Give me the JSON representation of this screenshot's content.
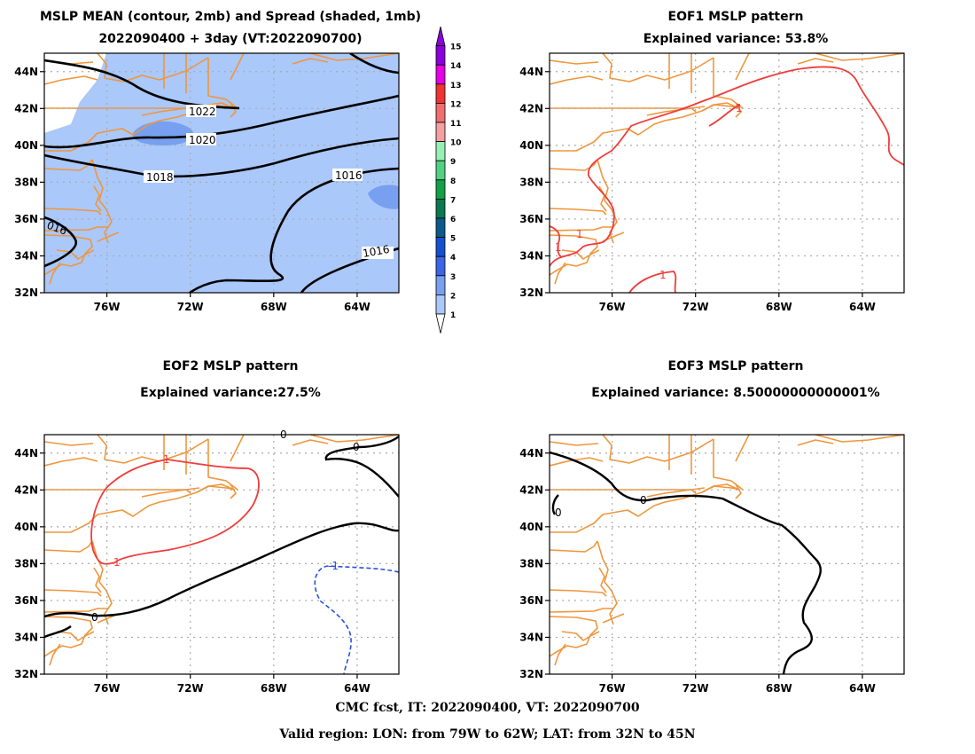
{
  "panels": [
    {
      "id": "mean",
      "title": [
        "MSLP MEAN (contour, 2mb) and Spread (shaded, 1mb)",
        "2022090400 + 3day (VT:2022090700)"
      ],
      "contour_labels": [
        "1022",
        "1020",
        "1018",
        "1016",
        "016",
        "1016"
      ]
    },
    {
      "id": "eof1",
      "title": [
        "EOF1 MSLP pattern",
        "Explained variance: 53.8%"
      ],
      "contour_labels": [
        "1",
        "1",
        "1",
        "1"
      ]
    },
    {
      "id": "eof2",
      "title": [
        "EOF2 MSLP pattern",
        "Explained variance:27.5%"
      ],
      "contour_labels": [
        "1",
        "1",
        "0",
        "0",
        "0",
        "-1"
      ]
    },
    {
      "id": "eof3",
      "title": [
        "EOF3 MSLP pattern",
        "Explained variance: 8.50000000000001%"
      ],
      "contour_labels": [
        "0",
        "0"
      ]
    }
  ],
  "axes": {
    "lat_ticks": [
      "44N",
      "42N",
      "40N",
      "38N",
      "36N",
      "34N",
      "32N"
    ],
    "lon_ticks": [
      "76W",
      "72W",
      "68W",
      "64W"
    ],
    "lat_range": [
      32,
      45
    ],
    "lon_range": [
      -79,
      -62
    ]
  },
  "colorbar": {
    "levels": [
      "1",
      "2",
      "3",
      "4",
      "5",
      "6",
      "7",
      "8",
      "9",
      "10",
      "11",
      "12",
      "13",
      "14",
      "15"
    ],
    "colors": [
      "#ffffff",
      "#aac8fa",
      "#78a0f0",
      "#3c64e6",
      "#1450d2",
      "#0a5a8c",
      "#0a7850",
      "#14a046",
      "#50d282",
      "#96f0b4",
      "#f5a0a0",
      "#f06e6e",
      "#f03232",
      "#e600e6",
      "#8c00dc"
    ]
  },
  "colors": {
    "coast": "#f0963c",
    "grid": "#aaaaaa",
    "contour": "#000000",
    "eof_positive": "#f03c3c",
    "eof_negative": "#2850dc",
    "spread_1_2": "#aac8fa",
    "spread_2_3": "#78a0f0"
  },
  "footer": {
    "line1": "CMC fcst, IT: 2022090400, VT: 2022090700",
    "line2": "Valid region: LON: from 79W to 62W; LAT: from 32N to 45N"
  }
}
